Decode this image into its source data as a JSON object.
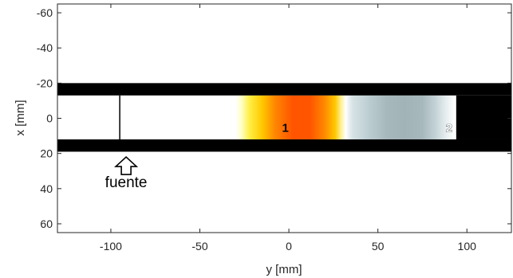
{
  "chart_data": {
    "type": "heatmap",
    "xlabel": "y [mm]",
    "ylabel": "x [mm]",
    "xlim": [
      -130,
      125
    ],
    "ylim": [
      -65,
      65
    ],
    "y_axis_reversed": true,
    "xticks": [
      -100,
      -50,
      0,
      50,
      100
    ],
    "yticks": [
      -60,
      -40,
      -20,
      0,
      20,
      40,
      60
    ],
    "grid": false,
    "walls": [
      {
        "x_range": [
          -130,
          125
        ],
        "y_range": [
          -20,
          -13
        ],
        "color": "#000000"
      },
      {
        "x_range": [
          -130,
          125
        ],
        "y_range": [
          12,
          19
        ],
        "color": "#000000"
      },
      {
        "x_range": [
          94,
          125
        ],
        "y_range": [
          -13,
          12
        ],
        "color": "#000000"
      }
    ],
    "source_line": {
      "x": -95,
      "y_range": [
        -13,
        12
      ]
    },
    "annotations": [
      {
        "text": "fuente",
        "x": -95,
        "y": 29,
        "arrow_icon": "up-arrow-icon",
        "arrow_tip_y": 22
      }
    ],
    "markers": [
      {
        "label": "1",
        "x": -2,
        "y": 5,
        "style": "dark"
      },
      {
        "label": "2",
        "x": 90,
        "y": 5,
        "style": "light"
      }
    ],
    "heat_profile": {
      "x": [
        -30,
        -27,
        -22,
        -15,
        -8,
        2,
        12,
        20,
        26,
        29,
        32,
        34,
        36,
        45,
        55,
        65,
        75,
        82,
        88,
        93
      ],
      "colors": [
        "#ffffff",
        "#ffffcc",
        "#ffee44",
        "#ffc800",
        "#ff8800",
        "#ff5500",
        "#ff5500",
        "#ff8800",
        "#ffc800",
        "#ffee88",
        "#ffffff",
        "#e6eef0",
        "#d6e2e5",
        "#bccdd2",
        "#a7b8bd",
        "#a2b3b8",
        "#a7b8bd",
        "#c2d1d5",
        "#e5edee",
        "#ffffff"
      ]
    }
  }
}
